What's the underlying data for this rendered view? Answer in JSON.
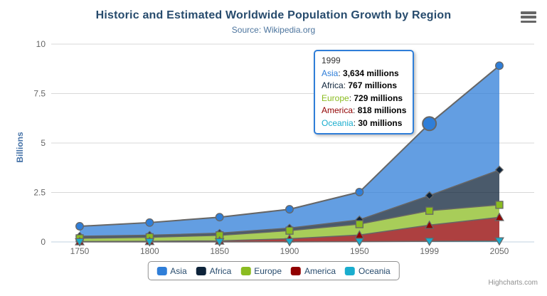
{
  "chart": {
    "title": "Historic and Estimated Worldwide Population Growth by Region",
    "subtitle": "Source: Wikipedia.org",
    "credits": "Highcharts.com"
  },
  "tooltip": {
    "header": "1999",
    "border_color": "#2f7ed8",
    "rows": [
      {
        "name": "Asia",
        "color": "#2f7ed8",
        "value": "3,634 millions"
      },
      {
        "name": "Africa",
        "color": "#0d233a",
        "value": "767 millions"
      },
      {
        "name": "Europe",
        "color": "#8bbc21",
        "value": "729 millions"
      },
      {
        "name": "America",
        "color": "#910000",
        "value": "818 millions"
      },
      {
        "name": "Oceania",
        "color": "#1aadce",
        "value": "30 millions"
      }
    ]
  },
  "legend": {
    "items": [
      {
        "label": "Asia",
        "color": "#2f7ed8"
      },
      {
        "label": "Africa",
        "color": "#0d233a"
      },
      {
        "label": "Europe",
        "color": "#8bbc21"
      },
      {
        "label": "America",
        "color": "#910000"
      },
      {
        "label": "Oceania",
        "color": "#1aadce"
      }
    ]
  },
  "chart_data": {
    "type": "area",
    "stacking": "normal",
    "title": "Historic and Estimated Worldwide Population Growth by Region",
    "subtitle": "Source: Wikipedia.org",
    "categories": [
      "1750",
      "1800",
      "1850",
      "1900",
      "1950",
      "1999",
      "2050"
    ],
    "series": [
      {
        "name": "Asia",
        "color": "#2f7ed8",
        "marker": "circle",
        "values": [
          502,
          635,
          809,
          947,
          1402,
          3634,
          5268
        ]
      },
      {
        "name": "Africa",
        "color": "#0d233a",
        "marker": "diamond",
        "values": [
          106,
          107,
          111,
          133,
          221,
          767,
          1766
        ]
      },
      {
        "name": "Europe",
        "color": "#8bbc21",
        "marker": "square",
        "values": [
          163,
          203,
          276,
          408,
          547,
          729,
          628
        ]
      },
      {
        "name": "America",
        "color": "#910000",
        "marker": "triangle",
        "values": [
          18,
          31,
          54,
          156,
          339,
          818,
          1201
        ]
      },
      {
        "name": "Oceania",
        "color": "#1aadce",
        "marker": "triangle-down",
        "values": [
          2,
          2,
          2,
          6,
          13,
          30,
          46
        ]
      }
    ],
    "values_unit": "millions",
    "xlabel": "",
    "ylabel": "Billions",
    "ylim": [
      0,
      10
    ],
    "yticks": [
      "0",
      "2.5",
      "5",
      "7.5",
      "10"
    ],
    "grid": true,
    "legend_position": "bottom",
    "hover": {
      "series": "Asia",
      "category": "1999",
      "category_index": 5
    },
    "colors": {
      "grid": "#d8d8d8",
      "axis_line": "#C0D0E0",
      "series_line": "#666666",
      "axis_label": "#666666",
      "fill_opacity": 0.75
    }
  }
}
